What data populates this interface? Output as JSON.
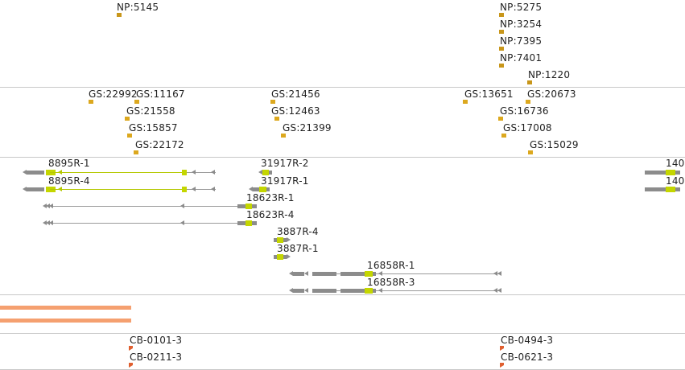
{
  "tracks": {
    "np": {
      "items": [
        {
          "label": "NP:5145"
        },
        {
          "label": "NP:5275"
        },
        {
          "label": "NP:3254"
        },
        {
          "label": "NP:7395"
        },
        {
          "label": "NP:7401"
        },
        {
          "label": "NP:1220"
        }
      ]
    },
    "gs": {
      "items": [
        {
          "label": "GS:22992"
        },
        {
          "label": "GS:11167"
        },
        {
          "label": "GS:21558"
        },
        {
          "label": "GS:15857"
        },
        {
          "label": "GS:22172"
        },
        {
          "label": "GS:21456"
        },
        {
          "label": "GS:12463"
        },
        {
          "label": "GS:21399"
        },
        {
          "label": "GS:13651"
        },
        {
          "label": "GS:20673"
        },
        {
          "label": "GS:16736"
        },
        {
          "label": "GS:17008"
        },
        {
          "label": "GS:15029"
        }
      ]
    },
    "genes": {
      "items": [
        {
          "label": "8895R-1"
        },
        {
          "label": "8895R-4"
        },
        {
          "label": "31917R-2"
        },
        {
          "label": "31917R-1"
        },
        {
          "label": "18623R-1"
        },
        {
          "label": "18623R-4"
        },
        {
          "label": "3887R-4"
        },
        {
          "label": "3887R-1"
        },
        {
          "label": "16858R-1"
        },
        {
          "label": "16858R-3"
        },
        {
          "label": "140"
        },
        {
          "label": "140"
        }
      ]
    },
    "cb": {
      "items": [
        {
          "label": "CB-0101-3"
        },
        {
          "label": "CB-0211-3"
        },
        {
          "label": "CB-0494-3"
        },
        {
          "label": "CB-0621-3"
        }
      ]
    }
  },
  "colors": {
    "np_marker": "#c8961a",
    "gs_marker": "#dca81e",
    "cb_marker": "#e06030",
    "exon": "#8c8c8c",
    "cds": "#c4d600",
    "orange_bar": "#f5a070",
    "separator": "#c8c8c8"
  }
}
